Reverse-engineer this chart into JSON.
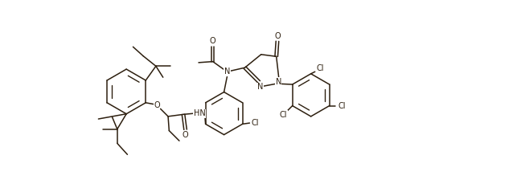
{
  "background_color": "#ffffff",
  "line_color": "#2d1f0f",
  "line_width": 1.1,
  "text_color": "#2d1f0f",
  "font_size": 7.0,
  "figsize": [
    6.43,
    2.24
  ],
  "dpi": 100,
  "xlim": [
    0,
    10.0
  ],
  "ylim": [
    0,
    3.5
  ]
}
